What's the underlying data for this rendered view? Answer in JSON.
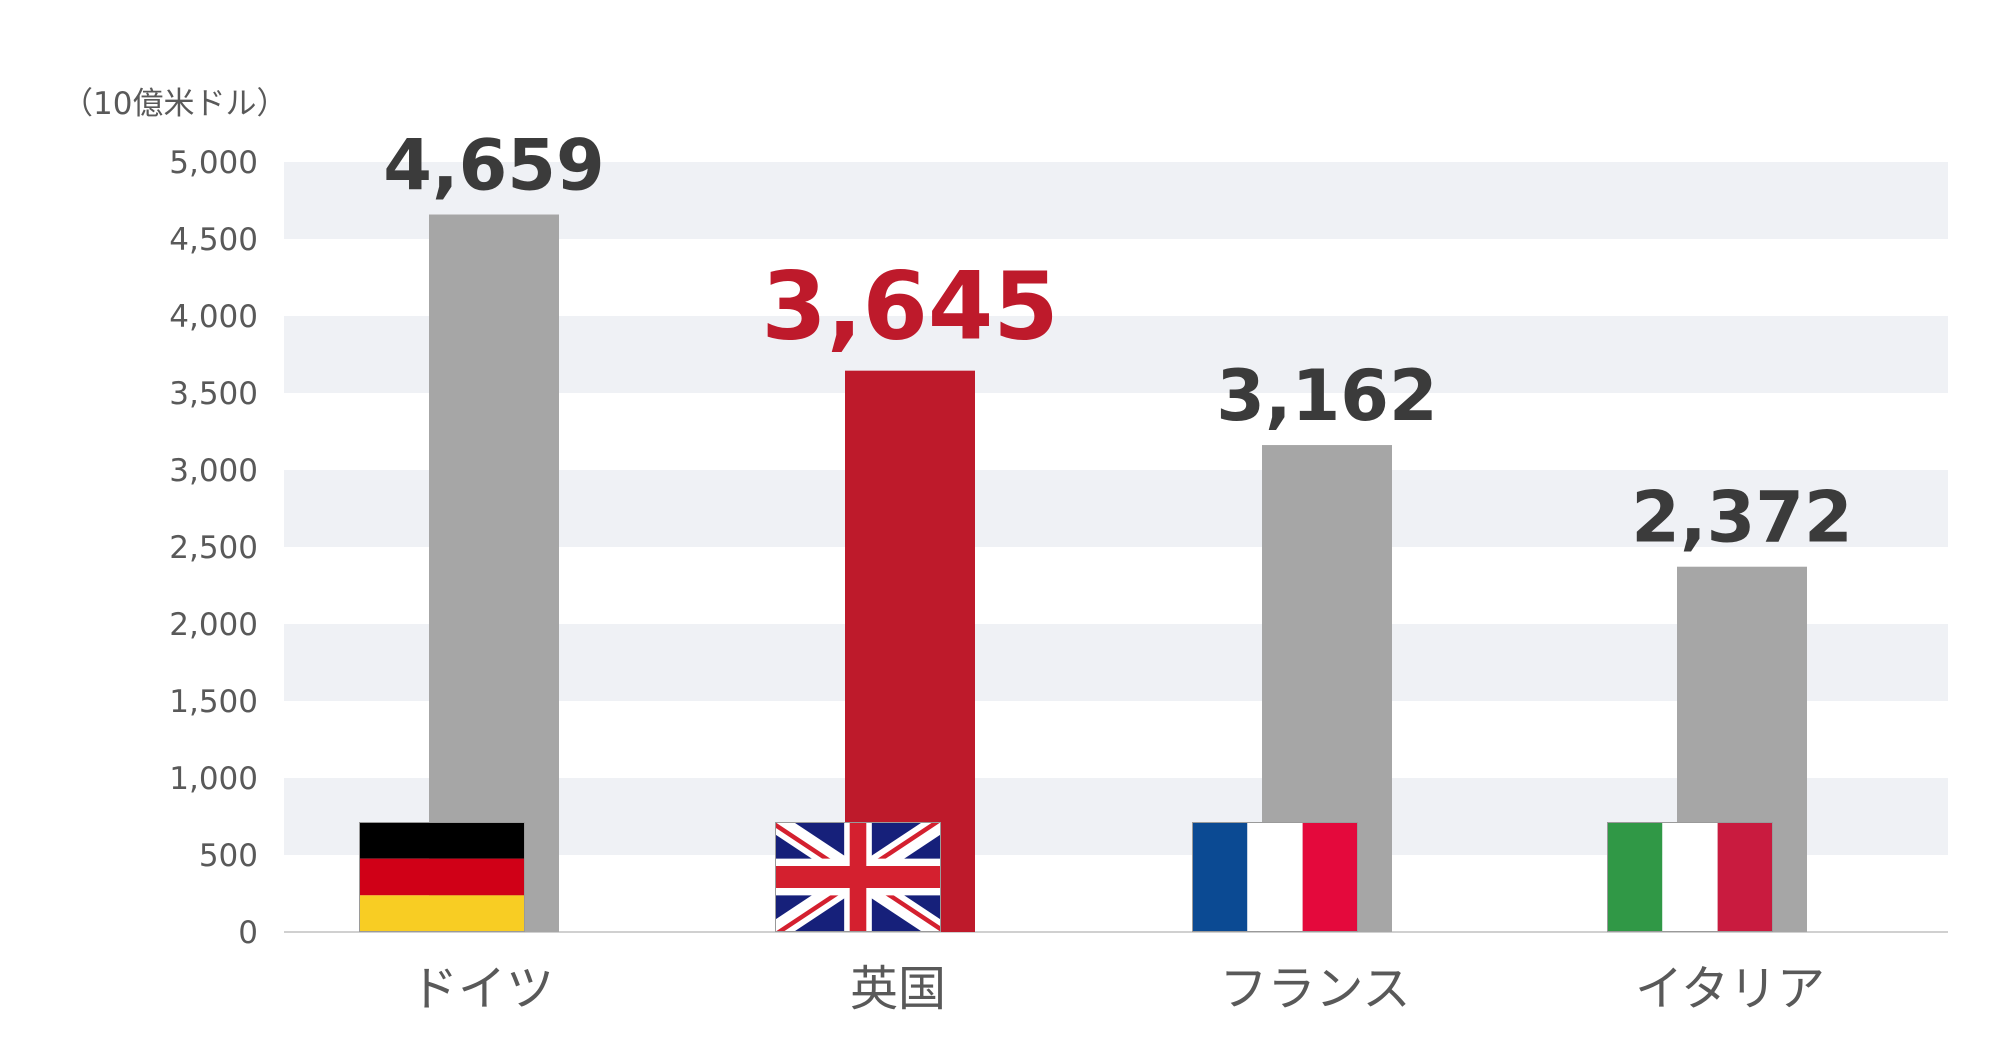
{
  "chart_data": {
    "type": "bar",
    "unit": "（10億米ドル）",
    "categories": [
      "ドイツ",
      "英国",
      "フランス",
      "イタリア"
    ],
    "values": [
      4659,
      3645,
      3162,
      2372
    ],
    "value_labels": [
      "4,659",
      "3,645",
      "3,162",
      "2,372"
    ],
    "highlight_index": 1,
    "ylim": [
      0,
      5000
    ],
    "yticks": [
      0,
      500,
      1000,
      1500,
      2000,
      2500,
      3000,
      3500,
      4000,
      4500,
      5000
    ],
    "ytick_labels": [
      "0",
      "500",
      "1,000",
      "1,500",
      "2,000",
      "2,500",
      "3,000",
      "3,500",
      "4,000",
      "4,500",
      "5,000"
    ],
    "flags": [
      "germany-flag",
      "uk-flag",
      "france-flag",
      "italy-flag"
    ],
    "colors": {
      "bar": "#a6a6a6",
      "highlight": "#be1a2b",
      "label": "#3b3b3b",
      "highlight_label": "#be1a2b",
      "axis_text": "#595959",
      "band": "#eff1f5"
    }
  }
}
